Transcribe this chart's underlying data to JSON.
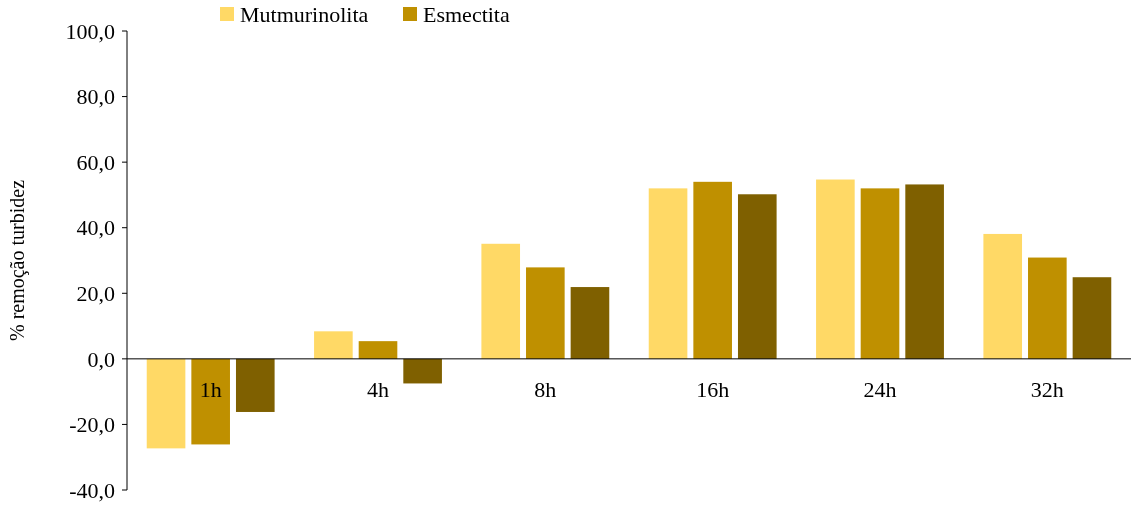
{
  "chart_data": {
    "type": "bar",
    "ylabel": "% remoção turbidez",
    "categories": [
      "1h",
      "4h",
      "8h",
      "16h",
      "24h",
      "32h"
    ],
    "series": [
      {
        "name": "Mutmurinolita",
        "color": "#ffd966",
        "values": [
          -27.3,
          8.4,
          35.1,
          52,
          54.7,
          38.1
        ]
      },
      {
        "name": "Esmectita",
        "color": "#bf9000",
        "values": [
          -26.1,
          5.4,
          27.9,
          54,
          52,
          30.9
        ]
      },
      {
        "color": "#7f6000",
        "values": [
          -16.2,
          -7.5,
          21.9,
          50.2,
          53.2,
          24.9
        ]
      }
    ],
    "ylim": [
      -40,
      100
    ],
    "yticks": [
      {
        "value": -40,
        "label": "-40,0"
      },
      {
        "value": -20,
        "label": "-20,0"
      },
      {
        "value": 0,
        "label": "0,0"
      },
      {
        "value": 20,
        "label": "20,0"
      },
      {
        "value": 40,
        "label": "40,0"
      },
      {
        "value": 60,
        "label": "60,0"
      },
      {
        "value": 80,
        "label": "80,0"
      },
      {
        "value": 100,
        "label": "100,0"
      }
    ],
    "legend": "top",
    "grid": false
  }
}
